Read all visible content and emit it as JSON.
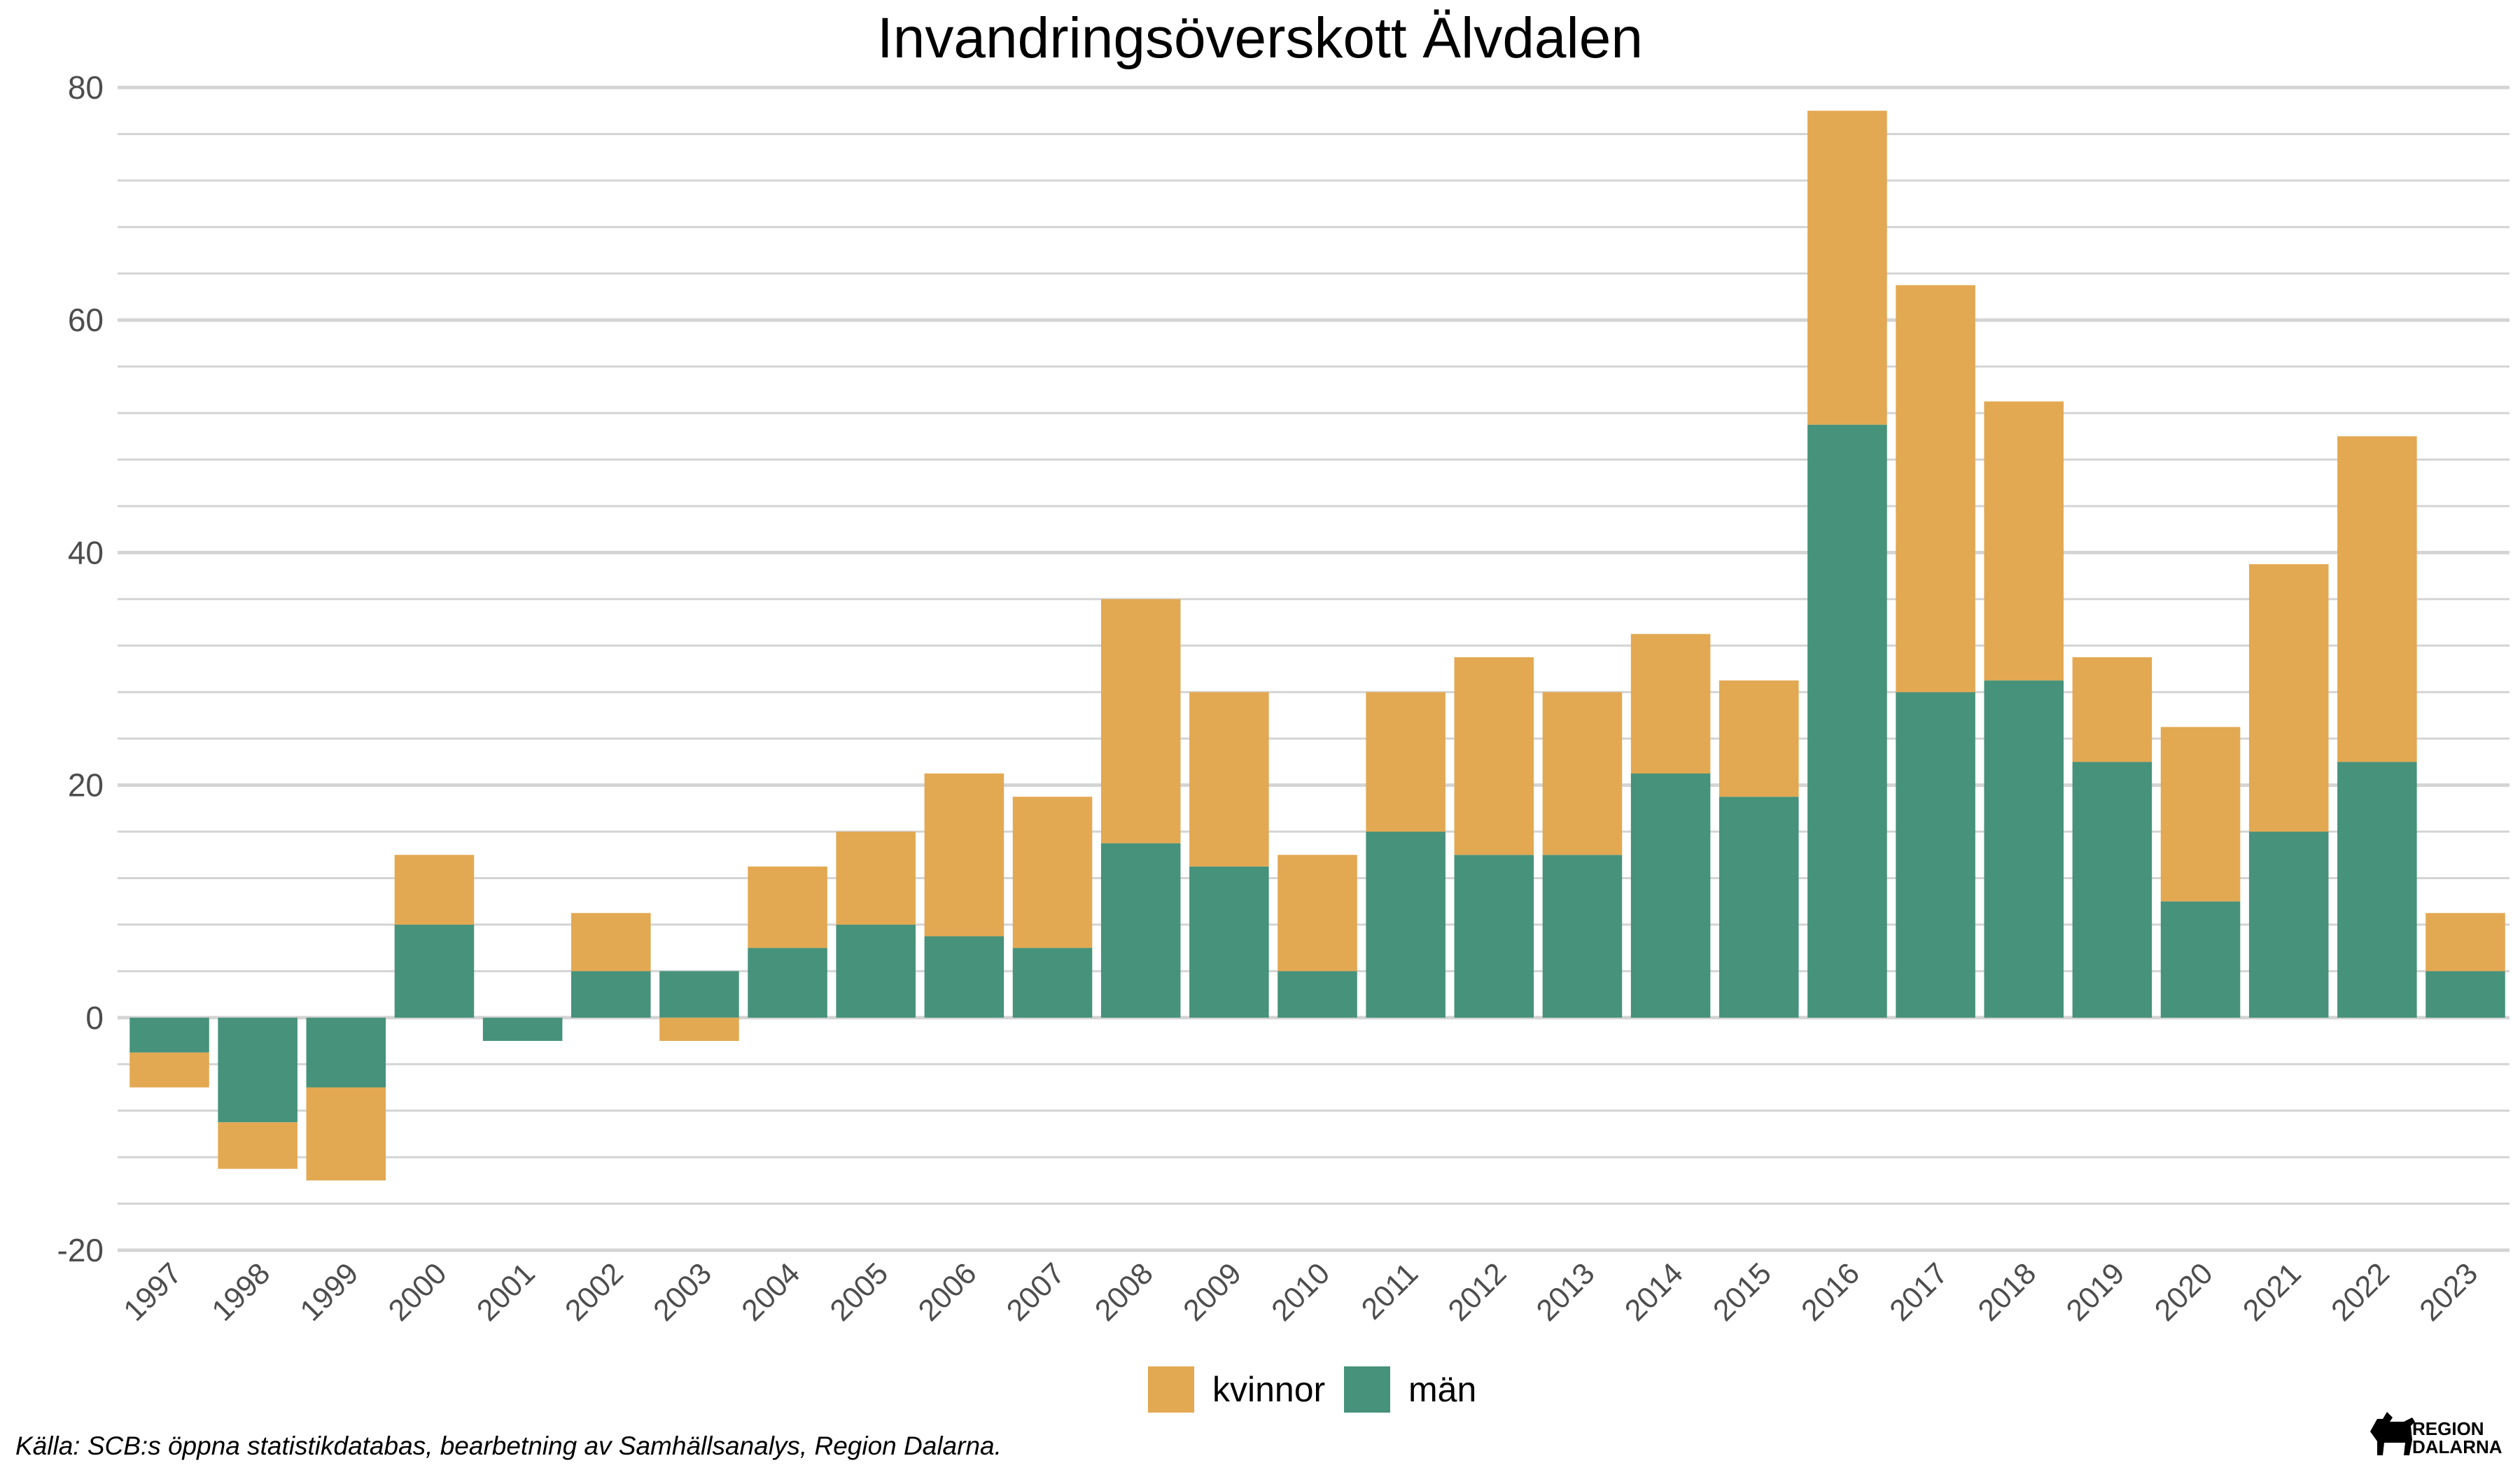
{
  "chart_data": {
    "type": "bar",
    "stacked": true,
    "title": "Invandringsöverskott Älvdalen",
    "xlabel": "",
    "ylabel": "",
    "ylim": [
      -20,
      80
    ],
    "yticks": [
      -20,
      0,
      20,
      40,
      60,
      80
    ],
    "ytick_labels": [
      "-20",
      "0",
      "20",
      "40",
      "60",
      "80"
    ],
    "minor_grid_step": 4,
    "grid": true,
    "legend_position": "bottom",
    "categories": [
      "1997",
      "1998",
      "1999",
      "2000",
      "2001",
      "2002",
      "2003",
      "2004",
      "2005",
      "2006",
      "2007",
      "2008",
      "2009",
      "2010",
      "2011",
      "2012",
      "2013",
      "2014",
      "2015",
      "2016",
      "2017",
      "2018",
      "2019",
      "2020",
      "2021",
      "2022",
      "2023"
    ],
    "series": [
      {
        "name": "män",
        "color": "#46927a",
        "values": [
          -3,
          -9,
          -6,
          8,
          -2,
          4,
          4,
          6,
          8,
          7,
          6,
          15,
          13,
          4,
          16,
          14,
          14,
          21,
          19,
          51,
          28,
          29,
          22,
          10,
          16,
          22,
          4
        ]
      },
      {
        "name": "kvinnor",
        "color": "#e3a852",
        "values": [
          -3,
          -4,
          -8,
          6,
          0,
          5,
          -2,
          7,
          8,
          14,
          13,
          21,
          15,
          10,
          12,
          17,
          14,
          12,
          10,
          27,
          35,
          24,
          9,
          15,
          23,
          28,
          5
        ]
      }
    ],
    "legend_order": [
      "kvinnor",
      "män"
    ]
  },
  "source": "Källa: SCB:s öppna statistikdatabas, bearbetning av Samhällsanalys, Region Dalarna.",
  "logo": {
    "line1": "REGION",
    "line2": "DALARNA"
  }
}
